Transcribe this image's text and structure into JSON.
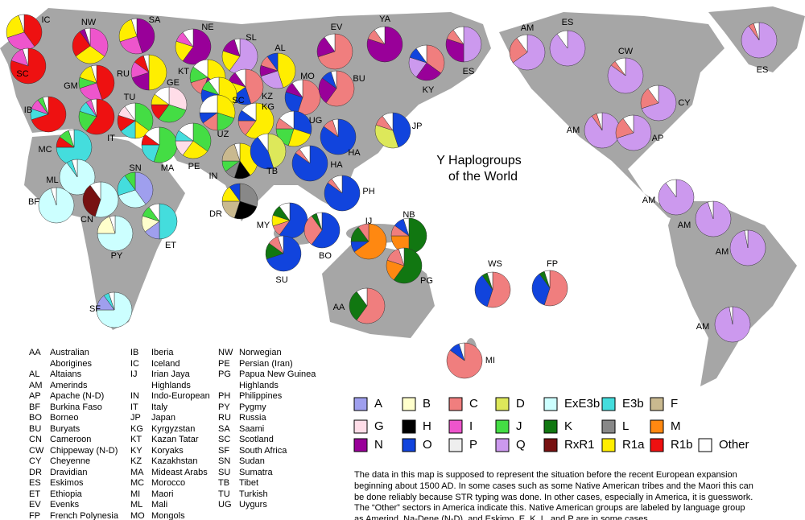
{
  "title_lines": [
    "Y Haplogroups",
    "of the World"
  ],
  "haplogroups": [
    {
      "name": "A",
      "color": "#9f9fee"
    },
    {
      "name": "B",
      "color": "#ffffcc"
    },
    {
      "name": "C",
      "color": "#f07e7e"
    },
    {
      "name": "D",
      "color": "#dde85a"
    },
    {
      "name": "ExE3b",
      "color": "#ccffff"
    },
    {
      "name": "E3b",
      "color": "#44dddd"
    },
    {
      "name": "F",
      "color": "#c9b98f"
    },
    {
      "name": "G",
      "color": "#ffdde8"
    },
    {
      "name": "H",
      "color": "#000000"
    },
    {
      "name": "I",
      "color": "#ee55cc"
    },
    {
      "name": "J",
      "color": "#44dd44"
    },
    {
      "name": "K",
      "color": "#117711"
    },
    {
      "name": "L",
      "color": "#888888"
    },
    {
      "name": "M",
      "color": "#ff8811"
    },
    {
      "name": "N",
      "color": "#990099"
    },
    {
      "name": "O",
      "color": "#1144dd"
    },
    {
      "name": "P",
      "color": "#eeeeee"
    },
    {
      "name": "Q",
      "color": "#cc99ee"
    },
    {
      "name": "RxR1",
      "color": "#771111"
    },
    {
      "name": "R1a",
      "color": "#ffee00"
    },
    {
      "name": "R1b",
      "color": "#ee1111"
    },
    {
      "name": "Other",
      "color": "#ffffff"
    }
  ],
  "pies": [
    {
      "label": "IC",
      "slices": {
        "R1b": 40,
        "I": 30,
        "R1a": 25,
        "Other": 5
      }
    },
    {
      "label": "SC",
      "slices": {
        "R1b": 80,
        "I": 15,
        "Other": 5
      }
    },
    {
      "label": "NW",
      "slices": {
        "I": 35,
        "R1a": 30,
        "R1b": 25,
        "N": 5,
        "Other": 5
      }
    },
    {
      "label": "SA",
      "slices": {
        "N": 45,
        "I": 25,
        "R1a": 25,
        "Other": 5
      }
    },
    {
      "label": "NE",
      "slices": {
        "N": 60,
        "R1a": 20,
        "I": 10,
        "Other": 10
      }
    },
    {
      "label": "SL",
      "slices": {
        "Q": 60,
        "R1a": 20,
        "N": 15,
        "Other": 5
      }
    },
    {
      "label": "AL",
      "slices": {
        "R1a": 45,
        "Q": 25,
        "N": 10,
        "C": 10,
        "O": 10
      }
    },
    {
      "label": "EV",
      "slices": {
        "C": 70,
        "N": 20,
        "Other": 10
      }
    },
    {
      "label": "YA",
      "slices": {
        "N": 80,
        "C": 10,
        "Other": 10
      }
    },
    {
      "label": "KY",
      "slices": {
        "C": 35,
        "N": 25,
        "Q": 20,
        "O": 10,
        "Other": 10
      }
    },
    {
      "label": "ES",
      "slices": {
        "Q": 50,
        "N": 30,
        "C": 10,
        "Other": 10
      }
    },
    {
      "label": "GM",
      "slices": {
        "R1b": 45,
        "I": 25,
        "J": 10,
        "R1a": 15,
        "Other": 5
      }
    },
    {
      "label": "RU",
      "slices": {
        "R1a": 50,
        "N": 20,
        "I": 15,
        "R1b": 10,
        "Other": 5
      }
    },
    {
      "label": "KT",
      "slices": {
        "R1a": 35,
        "N": 20,
        "C": 15,
        "J": 15,
        "Other": 15
      }
    },
    {
      "label": "MO",
      "slices": {
        "C": 55,
        "O": 25,
        "N": 10,
        "Other": 10
      }
    },
    {
      "label": "BU",
      "slices": {
        "C": 60,
        "N": 25,
        "O": 10,
        "Other": 5
      }
    },
    {
      "label": "IB",
      "slices": {
        "R1b": 70,
        "E3b": 10,
        "I": 10,
        "J": 5,
        "Other": 5
      }
    },
    {
      "label": "TU",
      "slices": {
        "J": 35,
        "R1a": 15,
        "E3b": 15,
        "R1b": 15,
        "G": 10,
        "Other": 10
      }
    },
    {
      "label": "GE",
      "slices": {
        "G": 30,
        "J": 30,
        "R1b": 15,
        "R1a": 10,
        "Other": 15
      }
    },
    {
      "label": "KZ",
      "slices": {
        "C": 45,
        "O": 20,
        "R1a": 15,
        "N": 10,
        "Other": 10
      }
    },
    {
      "label": "KG",
      "slices": {
        "R1a": 60,
        "C": 15,
        "O": 10,
        "Other": 15
      }
    },
    {
      "label": "SC",
      "slices": {
        "R1a": 40,
        "C": 20,
        "O": 20,
        "J": 10,
        "Other": 10
      }
    },
    {
      "label": "UZ",
      "slices": {
        "R1a": 30,
        "J": 20,
        "C": 15,
        "O": 10,
        "Other": 25
      }
    },
    {
      "label": "UG",
      "slices": {
        "O": 30,
        "R1a": 25,
        "J": 20,
        "C": 10,
        "Other": 15
      }
    },
    {
      "label": "JP",
      "slices": {
        "O": 45,
        "D": 35,
        "C": 10,
        "Other": 10
      }
    },
    {
      "label": "HA",
      "slices": {
        "O": 85,
        "C": 10,
        "Other": 5
      }
    },
    {
      "label": "IT",
      "slices": {
        "R1b": 60,
        "J": 20,
        "E3b": 10,
        "I": 5,
        "Other": 5
      }
    },
    {
      "label": "MC",
      "slices": {
        "E3b": 75,
        "R1b": 10,
        "J": 10,
        "Other": 5
      }
    },
    {
      "label": "MA",
      "slices": {
        "J": 55,
        "E3b": 20,
        "R1b": 10,
        "Other": 15
      }
    },
    {
      "label": "PE",
      "slices": {
        "J": 35,
        "R1a": 25,
        "G": 15,
        "E3b": 10,
        "Other": 15
      }
    },
    {
      "label": "IN",
      "slices": {
        "R1a": 40,
        "H": 15,
        "L": 10,
        "J": 10,
        "F": 20,
        "Other": 5
      }
    },
    {
      "label": "TB",
      "slices": {
        "D": 45,
        "O": 45,
        "Other": 10
      }
    },
    {
      "label": "HA",
      "slices": {
        "O": 85,
        "C": 5,
        "Other": 10
      }
    },
    {
      "label": "ML",
      "slices": {
        "ExE3b": 90,
        "E3b": 5,
        "Other": 5
      }
    },
    {
      "label": "SN",
      "slices": {
        "A": 40,
        "ExE3b": 30,
        "E3b": 20,
        "J": 10
      }
    },
    {
      "label": "DR",
      "slices": {
        "L": 30,
        "H": 25,
        "F": 20,
        "R1a": 15,
        "O": 10
      }
    },
    {
      "label": "PH",
      "slices": {
        "O": 85,
        "C": 5,
        "Other": 10
      }
    },
    {
      "label": "BF",
      "slices": {
        "ExE3b": 95,
        "Other": 5
      }
    },
    {
      "label": "CN",
      "slices": {
        "ExE3b": 55,
        "RxR1": 35,
        "Other": 10
      }
    },
    {
      "label": "ET",
      "slices": {
        "E3b": 50,
        "A": 15,
        "B": 15,
        "J": 10,
        "Other": 10
      }
    },
    {
      "label": "MY",
      "slices": {
        "O": 60,
        "C": 10,
        "R1a": 10,
        "K": 10,
        "Other": 10
      }
    },
    {
      "label": "IJ",
      "slices": {
        "M": 65,
        "O": 10,
        "K": 15,
        "C": 10
      }
    },
    {
      "label": "NB",
      "slices": {
        "K": 50,
        "M": 25,
        "C": 10,
        "O": 10,
        "Other": 5
      }
    },
    {
      "label": "BO",
      "slices": {
        "O": 60,
        "C": 30,
        "K": 5,
        "Other": 5
      }
    },
    {
      "label": "PY",
      "slices": {
        "ExE3b": 75,
        "B": 20,
        "Other": 5
      }
    },
    {
      "label": "SU",
      "slices": {
        "O": 70,
        "K": 15,
        "C": 10,
        "Other": 5
      }
    },
    {
      "label": "PG",
      "slices": {
        "K": 60,
        "M": 20,
        "C": 15,
        "Other": 5
      }
    },
    {
      "label": "WS",
      "slices": {
        "C": 55,
        "O": 35,
        "K": 5,
        "Other": 5
      }
    },
    {
      "label": "FP",
      "slices": {
        "C": 55,
        "O": 35,
        "K": 5,
        "Other": 5
      }
    },
    {
      "label": "SF",
      "slices": {
        "ExE3b": 75,
        "A": 15,
        "E3b": 5,
        "Other": 5
      }
    },
    {
      "label": "AA",
      "slices": {
        "C": 60,
        "K": 30,
        "Other": 10
      }
    },
    {
      "label": "MI",
      "slices": {
        "C": 85,
        "O": 10,
        "Other": 5
      }
    },
    {
      "label": "AM",
      "slices": {
        "Q": 65,
        "C": 25,
        "Other": 10
      }
    },
    {
      "label": "ES",
      "slices": {
        "Q": 90,
        "Other": 10
      }
    },
    {
      "label": "ES",
      "slices": {
        "Q": 90,
        "C": 5,
        "Other": 5
      }
    },
    {
      "label": "CW",
      "slices": {
        "Q": 85,
        "C": 5,
        "Other": 10
      }
    },
    {
      "label": "CY",
      "slices": {
        "Q": 70,
        "C": 20,
        "Other": 10
      }
    },
    {
      "label": "AM",
      "slices": {
        "Q": 90,
        "C": 5,
        "Other": 5
      }
    },
    {
      "label": "AP",
      "slices": {
        "Q": 70,
        "C": 20,
        "Other": 10
      }
    },
    {
      "label": "AM",
      "slices": {
        "Q": 90,
        "Other": 10
      }
    },
    {
      "label": "AM",
      "slices": {
        "Q": 95,
        "Other": 5
      }
    },
    {
      "label": "AM",
      "slices": {
        "Q": 97,
        "Other": 3
      }
    },
    {
      "label": "AM",
      "slices": {
        "Q": 97,
        "Other": 3
      }
    }
  ],
  "key": [
    [
      {
        "code": "AA",
        "name": "Australian Aborigines"
      },
      {
        "code": "AL",
        "name": "Altaians"
      },
      {
        "code": "AM",
        "name": "Amerinds"
      },
      {
        "code": "AP",
        "name": "Apache (N-D)"
      },
      {
        "code": "BF",
        "name": "Burkina Faso"
      },
      {
        "code": "BO",
        "name": "Borneo"
      },
      {
        "code": "BU",
        "name": "Buryats"
      },
      {
        "code": "CN",
        "name": "Cameroon"
      },
      {
        "code": "CW",
        "name": "Chippeway (N-D)"
      },
      {
        "code": "CY",
        "name": "Cheyenne"
      },
      {
        "code": "DR",
        "name": "Dravidian"
      },
      {
        "code": "ES",
        "name": "Eskimos"
      },
      {
        "code": "ET",
        "name": "Ethiopia"
      },
      {
        "code": "EV",
        "name": "Evenks"
      },
      {
        "code": "FP",
        "name": "French Polynesia"
      }
    ],
    [
      {
        "code": "IB",
        "name": "Iberia"
      },
      {
        "code": "IC",
        "name": "Iceland"
      },
      {
        "code": "IJ",
        "name": "Irian Jaya Highlands"
      },
      {
        "code": "IN",
        "name": "Indo-European"
      },
      {
        "code": "IT",
        "name": "Italy"
      },
      {
        "code": "JP",
        "name": "Japan"
      },
      {
        "code": "KG",
        "name": "Kyrgyzstan"
      },
      {
        "code": "KT",
        "name": "Kazan Tatar"
      },
      {
        "code": "KY",
        "name": "Koryaks"
      },
      {
        "code": "KZ",
        "name": "Kazakhstan"
      },
      {
        "code": "MA",
        "name": "Mideast Arabs"
      },
      {
        "code": "MC",
        "name": "Morocco"
      },
      {
        "code": "MI",
        "name": "Maori"
      },
      {
        "code": "ML",
        "name": "Mali"
      },
      {
        "code": "MO",
        "name": "Mongols"
      }
    ],
    [
      {
        "code": "NW",
        "name": "Norwegian"
      },
      {
        "code": "PE",
        "name": "Persian (Iran)"
      },
      {
        "code": "PG",
        "name": "Papua New Guinea Highlands"
      },
      {
        "code": "PH",
        "name": "Philippines"
      },
      {
        "code": "PY",
        "name": "Pygmy"
      },
      {
        "code": "RU",
        "name": "Russia"
      },
      {
        "code": "SA",
        "name": "Saami"
      },
      {
        "code": "SC",
        "name": "Scotland"
      },
      {
        "code": "SF",
        "name": "South Africa"
      },
      {
        "code": "SN",
        "name": "Sudan"
      },
      {
        "code": "SU",
        "name": "Sumatra"
      },
      {
        "code": "TB",
        "name": "Tibet"
      },
      {
        "code": "TU",
        "name": "Turkish"
      },
      {
        "code": "UG",
        "name": "Uygurs"
      }
    ]
  ],
  "note": "The data in this map is supposed to represent the situation before the recent European expansion beginning about 1500 AD. In some cases such as some Native American tribes and the Maori this can be done reliably because STR typing was done. In other cases, especially in America, it is guesswork. The “Other” sectors in America indicate this. Native American groups are labeled by language group as Amerind, Na-Dene (N-D), and Eskimo. E, K, L, and P are in some cases"
}
